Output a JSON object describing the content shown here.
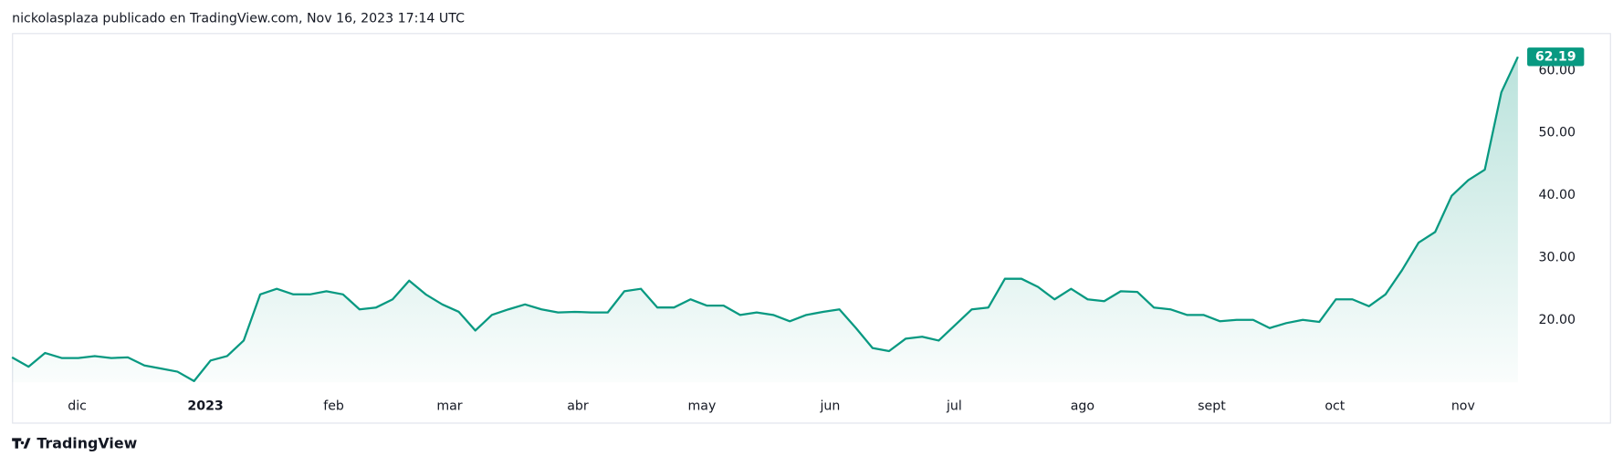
{
  "chart_data": {
    "type": "line",
    "title": "nickolasplaza publicado en TradingView.com, Nov 16, 2023 17:14 UTC",
    "footer": "TradingView",
    "color": "#089981",
    "values": [
      14.0,
      12.5,
      14.7,
      13.9,
      13.9,
      14.2,
      13.9,
      14.0,
      12.7,
      12.2,
      11.7,
      10.2,
      13.5,
      14.2,
      16.7,
      24.1,
      25.0,
      24.1,
      24.1,
      24.6,
      24.1,
      21.7,
      22.0,
      23.3,
      26.3,
      24.1,
      22.5,
      21.3,
      18.3,
      20.8,
      21.7,
      22.5,
      21.7,
      21.2,
      21.3,
      21.2,
      21.2,
      24.6,
      25.0,
      22.0,
      22.0,
      23.3,
      22.3,
      22.3,
      20.8,
      21.2,
      20.8,
      19.8,
      20.8,
      21.3,
      21.7,
      18.7,
      15.5,
      15.0,
      17.0,
      17.3,
      16.7,
      19.2,
      21.7,
      22.0,
      26.6,
      26.6,
      25.3,
      23.3,
      25.0,
      23.3,
      23.0,
      24.6,
      24.5,
      22.0,
      21.7,
      20.8,
      20.8,
      19.8,
      20.0,
      20.0,
      18.7,
      19.5,
      20.0,
      19.7,
      23.3,
      23.3,
      22.2,
      24.1,
      28.0,
      32.4,
      34.1,
      39.9,
      42.4,
      44.1,
      56.5,
      62.19
    ],
    "xlim": [
      0,
      91
    ],
    "xticks": [
      {
        "value": 3.94,
        "label": "dic"
      },
      {
        "value": 11.69,
        "label": "2023"
      },
      {
        "value": 19.44,
        "label": "feb"
      },
      {
        "value": 26.44,
        "label": "mar"
      },
      {
        "value": 34.19,
        "label": "abr"
      },
      {
        "value": 41.69,
        "label": "may"
      },
      {
        "value": 49.44,
        "label": "jun"
      },
      {
        "value": 56.94,
        "label": "jul"
      },
      {
        "value": 64.69,
        "label": "ago"
      },
      {
        "value": 72.5,
        "label": "sept"
      },
      {
        "value": 79.94,
        "label": "oct"
      },
      {
        "value": 87.69,
        "label": "nov"
      }
    ],
    "ylim": [
      10,
      66
    ],
    "yticks": [
      {
        "value": 20,
        "label": "20.00"
      },
      {
        "value": 30,
        "label": "30.00"
      },
      {
        "value": 40,
        "label": "40.00"
      },
      {
        "value": 50,
        "label": "50.00"
      },
      {
        "value": 60,
        "label": "60.00"
      }
    ]
  }
}
